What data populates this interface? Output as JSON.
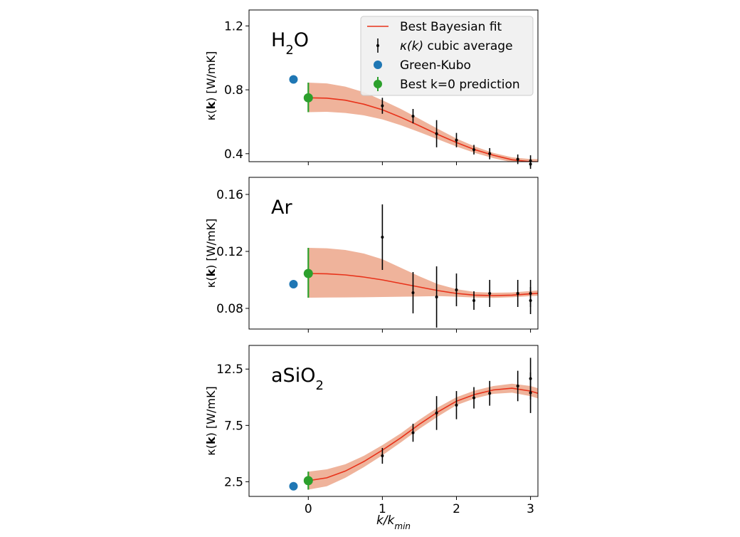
{
  "chart_data": [
    {
      "type": "line",
      "panel_label": "H₂O",
      "ylabel": "κ(k) [W/mK]",
      "ylim": [
        0.35,
        1.3
      ],
      "yticks": [
        0.4,
        0.8,
        1.2
      ],
      "yticklabels": [
        "0.4",
        "0.8",
        "1.2"
      ],
      "xlim": [
        -0.8,
        3.1
      ],
      "green_kubo": {
        "x": -0.2,
        "y": 0.865
      },
      "k0_prediction": {
        "x": 0,
        "y": 0.75,
        "err_low": 0.66,
        "err_high": 0.845
      },
      "fit_curve": {
        "x": [
          0,
          0.25,
          0.5,
          0.75,
          1.0,
          1.25,
          1.5,
          1.75,
          2.0,
          2.25,
          2.5,
          2.75,
          3.0,
          3.1
        ],
        "y": [
          0.75,
          0.748,
          0.735,
          0.71,
          0.675,
          0.628,
          0.575,
          0.52,
          0.47,
          0.425,
          0.39,
          0.362,
          0.35,
          0.35
        ],
        "band_low": [
          0.66,
          0.662,
          0.655,
          0.64,
          0.615,
          0.578,
          0.535,
          0.49,
          0.445,
          0.405,
          0.372,
          0.347,
          0.335,
          0.335
        ],
        "band_high": [
          0.845,
          0.84,
          0.82,
          0.785,
          0.735,
          0.68,
          0.618,
          0.555,
          0.495,
          0.445,
          0.405,
          0.377,
          0.366,
          0.366
        ]
      },
      "cubic_average": {
        "x": [
          1.0,
          1.414,
          1.732,
          2.0,
          2.236,
          2.449,
          2.828,
          3.0,
          3.0
        ],
        "y": [
          0.7,
          0.635,
          0.525,
          0.485,
          0.425,
          0.4,
          0.365,
          0.355,
          0.335
        ],
        "err": [
          0.05,
          0.045,
          0.085,
          0.045,
          0.03,
          0.035,
          0.03,
          0.035,
          0.03
        ]
      },
      "legend": {
        "placement": "top-right",
        "items": [
          "Best Bayesian fit",
          "κ(k) cubic average",
          "Green-Kubo",
          "Best k=0 prediction"
        ]
      }
    },
    {
      "type": "line",
      "panel_label": "Ar",
      "ylabel": "κ(k) [W/mK]",
      "ylim": [
        0.0655,
        0.172
      ],
      "yticks": [
        0.08,
        0.12,
        0.16
      ],
      "yticklabels": [
        "0.08",
        "0.12",
        "0.16"
      ],
      "xlim": [
        -0.8,
        3.1
      ],
      "green_kubo": {
        "x": -0.2,
        "y": 0.097
      },
      "k0_prediction": {
        "x": 0,
        "y": 0.1045,
        "err_low": 0.0875,
        "err_high": 0.1225
      },
      "fit_curve": {
        "x": [
          0,
          0.25,
          0.5,
          0.75,
          1.0,
          1.25,
          1.5,
          1.75,
          2.0,
          2.25,
          2.5,
          2.75,
          3.0,
          3.1
        ],
        "y": [
          0.1045,
          0.1043,
          0.1035,
          0.102,
          0.1,
          0.0975,
          0.095,
          0.0925,
          0.0905,
          0.0893,
          0.089,
          0.0893,
          0.0902,
          0.0906
        ],
        "band_low": [
          0.0875,
          0.0876,
          0.0877,
          0.0878,
          0.088,
          0.0882,
          0.0884,
          0.0886,
          0.0882,
          0.0876,
          0.0874,
          0.0878,
          0.0886,
          0.0889
        ],
        "band_high": [
          0.1225,
          0.1222,
          0.121,
          0.1185,
          0.1145,
          0.1085,
          0.1025,
          0.097,
          0.0935,
          0.0915,
          0.091,
          0.0912,
          0.0922,
          0.0926
        ]
      },
      "cubic_average": {
        "x": [
          1.0,
          1.414,
          1.732,
          2.0,
          2.236,
          2.449,
          2.828,
          3.0,
          3.0
        ],
        "y": [
          0.13,
          0.091,
          0.088,
          0.093,
          0.0855,
          0.0905,
          0.0905,
          0.0905,
          0.0855
        ],
        "err": [
          0.023,
          0.0145,
          0.0215,
          0.0115,
          0.0065,
          0.0095,
          0.0095,
          0.0095,
          0.0095
        ]
      }
    },
    {
      "type": "line",
      "panel_label": "aSiO₂",
      "ylabel": "κ(k) [W/mK]",
      "ylim": [
        1.2,
        14.6
      ],
      "yticks": [
        2.5,
        7.5,
        12.5
      ],
      "yticklabels": [
        "2.5",
        "7.5",
        "12.5"
      ],
      "xlim": [
        -0.8,
        3.1
      ],
      "xticks": [
        0,
        1,
        2,
        3
      ],
      "xticklabels": [
        "0",
        "1",
        "2",
        "3"
      ],
      "xlabel": "k/k_min",
      "green_kubo": {
        "x": -0.2,
        "y": 2.1
      },
      "k0_prediction": {
        "x": 0,
        "y": 2.6,
        "err_low": 1.8,
        "err_high": 3.4
      },
      "fit_curve": {
        "x": [
          0,
          0.25,
          0.5,
          0.75,
          1.0,
          1.25,
          1.5,
          1.75,
          2.0,
          2.25,
          2.5,
          2.75,
          3.0,
          3.1
        ],
        "y": [
          2.6,
          2.85,
          3.45,
          4.3,
          5.3,
          6.4,
          7.6,
          8.7,
          9.65,
          10.25,
          10.65,
          10.8,
          10.55,
          10.35
        ],
        "band_low": [
          1.8,
          2.1,
          2.85,
          3.8,
          4.85,
          6.0,
          7.2,
          8.3,
          9.3,
          9.9,
          10.3,
          10.4,
          10.1,
          9.9
        ],
        "band_high": [
          3.4,
          3.6,
          4.05,
          4.8,
          5.75,
          6.8,
          8.0,
          9.1,
          10.0,
          10.6,
          11.0,
          11.2,
          11.0,
          10.8
        ]
      },
      "cubic_average": {
        "x": [
          1.0,
          1.414,
          1.732,
          2.0,
          2.236,
          2.449,
          2.828,
          3.0,
          3.0
        ],
        "y": [
          4.8,
          6.85,
          8.6,
          9.3,
          9.95,
          10.35,
          11.0,
          11.65,
          10.4
        ],
        "err": [
          0.7,
          0.8,
          1.5,
          1.25,
          0.95,
          1.1,
          1.35,
          1.85,
          1.8
        ]
      }
    }
  ]
}
